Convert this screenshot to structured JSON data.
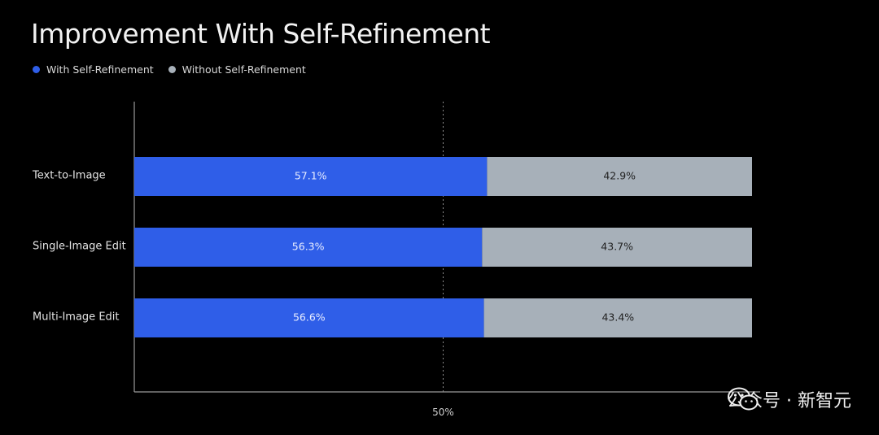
{
  "chart_data": {
    "type": "bar",
    "orientation": "horizontal",
    "stacked": true,
    "title": "Improvement With Self-Refinement",
    "categories": [
      "Text-to-Image",
      "Single-Image Edit",
      "Multi-Image Edit"
    ],
    "series": [
      {
        "name": "With Self-Refinement",
        "color": "#2f5ee8",
        "label_color": "#e8edff",
        "values": [
          57.1,
          56.3,
          56.6
        ],
        "labels": [
          "57.1%",
          "56.3%",
          "56.6%"
        ]
      },
      {
        "name": "Without Self-Refinement",
        "color": "#a7b0b9",
        "label_color": "#222222",
        "values": [
          42.9,
          43.7,
          43.4
        ],
        "labels": [
          "42.9%",
          "43.7%",
          "43.4%"
        ]
      }
    ],
    "xlim": [
      0,
      100
    ],
    "reference_line": {
      "value": 50,
      "label": "50%",
      "style": "dotted"
    },
    "grid": false,
    "legend_position": "top-left"
  },
  "watermark": {
    "text": "公众号 · 新智元",
    "icon": "wechat-icon"
  }
}
